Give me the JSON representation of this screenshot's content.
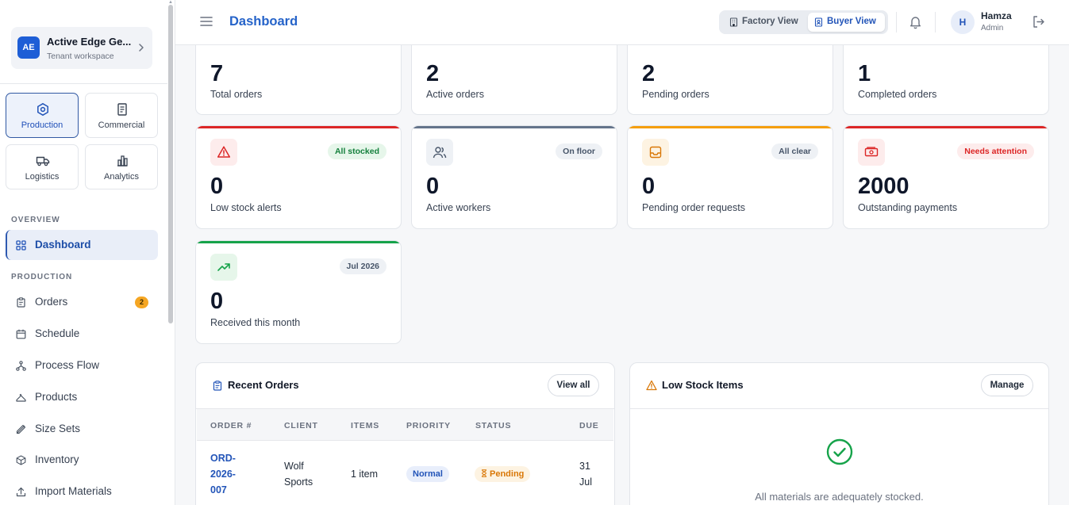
{
  "workspace": {
    "initials": "AE",
    "name": "Active Edge Ge...",
    "subtitle": "Tenant workspace"
  },
  "modules": [
    {
      "label": "Production",
      "active": true
    },
    {
      "label": "Commercial",
      "active": false
    },
    {
      "label": "Logistics",
      "active": false
    },
    {
      "label": "Analytics",
      "active": false
    }
  ],
  "nav": {
    "overview_label": "OVERVIEW",
    "dashboard": "Dashboard",
    "production_label": "PRODUCTION",
    "items": [
      {
        "label": "Orders",
        "badge": "2"
      },
      {
        "label": "Schedule"
      },
      {
        "label": "Process Flow"
      },
      {
        "label": "Products"
      },
      {
        "label": "Size Sets"
      },
      {
        "label": "Inventory"
      },
      {
        "label": "Import Materials"
      }
    ]
  },
  "header": {
    "title": "Dashboard",
    "factory_view": "Factory View",
    "buyer_view": "Buyer View",
    "active_view": "Buyer View",
    "user": {
      "initial": "H",
      "name": "Hamza",
      "role": "Admin"
    }
  },
  "stats_top": [
    {
      "value": "7",
      "label": "Total orders"
    },
    {
      "value": "2",
      "label": "Active orders"
    },
    {
      "value": "2",
      "label": "Pending orders"
    },
    {
      "value": "1",
      "label": "Completed orders"
    }
  ],
  "stats": [
    {
      "value": "0",
      "label": "Low stock alerts",
      "badge": "All stocked",
      "accent": "#dc2626"
    },
    {
      "value": "0",
      "label": "Active workers",
      "badge": "On floor",
      "accent": "#64748b"
    },
    {
      "value": "0",
      "label": "Pending order requests",
      "badge": "All clear",
      "accent": "#f59e0b"
    },
    {
      "value": "2000",
      "label": "Outstanding payments",
      "badge": "Needs attention",
      "accent": "#dc2626"
    },
    {
      "value": "0",
      "label": "Received this month",
      "badge": "Jul 2026",
      "accent": "#16a34a"
    }
  ],
  "recent_orders": {
    "title": "Recent Orders",
    "view_all": "View all",
    "columns": [
      "ORDER #",
      "CLIENT",
      "ITEMS",
      "PRIORITY",
      "STATUS",
      "DUE"
    ],
    "rows": [
      {
        "order_lines": [
          "ORD-",
          "2026-",
          "007"
        ],
        "client_lines": [
          "Wolf",
          "Sports"
        ],
        "items": "1 item",
        "priority": "Normal",
        "status": "Pending",
        "due_lines": [
          "31",
          "Jul"
        ]
      }
    ]
  },
  "low_stock": {
    "title": "Low Stock Items",
    "manage": "Manage",
    "empty_message": "All materials are adequately stocked."
  }
}
